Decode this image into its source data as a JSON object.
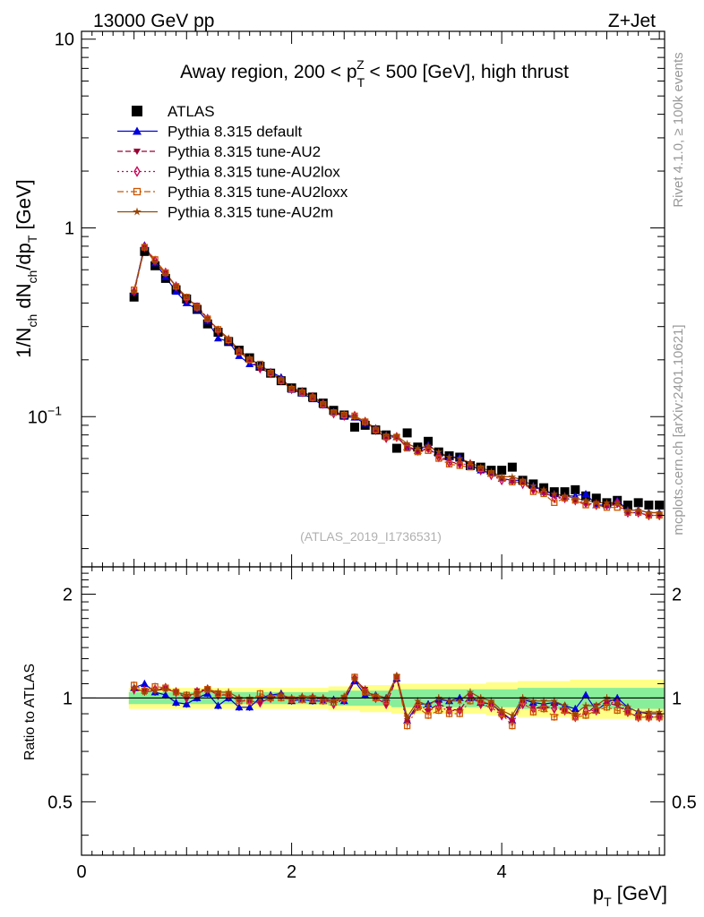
{
  "header": {
    "energy": "13000 GeV pp",
    "process": "Z+Jet"
  },
  "side": {
    "rivet": "Rivet 4.1.0, ≥ 100k events",
    "url": "mcplots.cern.ch [arXiv:2401.10621]"
  },
  "chart_data": [
    {
      "type": "scatter",
      "title": "Away region, 200 < p_T^Z < 500 [GeV], high thrust",
      "title_parts": {
        "main": "Away region, 200 < p",
        "sub": "T",
        "sup": "Z",
        "rest": " < 500 [GeV], high thrust"
      },
      "ylabel": "1/N_ch dN_ch/dp_T [GeV]",
      "ylabel_parts": {
        "a": "1/N",
        "b": "ch",
        "c": " dN",
        "d": "ch",
        "e": "/dp",
        "f": "T",
        "g": " [GeV]"
      },
      "yscale": "log",
      "ylim": [
        0.016,
        11
      ],
      "xlim": [
        0,
        5.55
      ],
      "yticks": [
        {
          "v": 10,
          "label": "10"
        },
        {
          "v": 1,
          "label": "1"
        },
        {
          "v": 0.1,
          "label": "10",
          "exp": "−1"
        }
      ],
      "reference": "(ATLAS_2019_I1736531)",
      "legend_position": "top-left",
      "x": [
        0.5,
        0.6,
        0.7,
        0.8,
        0.9,
        1.0,
        1.1,
        1.2,
        1.3,
        1.4,
        1.5,
        1.6,
        1.7,
        1.8,
        1.9,
        2.0,
        2.1,
        2.2,
        2.3,
        2.4,
        2.5,
        2.6,
        2.7,
        2.8,
        2.9,
        3.0,
        3.1,
        3.2,
        3.3,
        3.4,
        3.5,
        3.6,
        3.7,
        3.8,
        3.9,
        4.0,
        4.1,
        4.2,
        4.3,
        4.4,
        4.5,
        4.6,
        4.7,
        4.8,
        4.9,
        5.0,
        5.1,
        5.2,
        5.3,
        5.4,
        5.5
      ],
      "series": [
        {
          "name": "ATLAS",
          "color": "#000000",
          "marker": "square-filled",
          "values": [
            0.43,
            0.75,
            0.63,
            0.54,
            0.47,
            0.42,
            0.37,
            0.31,
            0.28,
            0.25,
            0.225,
            0.205,
            0.185,
            0.17,
            0.155,
            0.142,
            0.135,
            0.127,
            0.118,
            0.108,
            0.102,
            0.088,
            0.09,
            0.085,
            0.08,
            0.068,
            0.082,
            0.069,
            0.074,
            0.065,
            0.062,
            0.061,
            0.055,
            0.054,
            0.052,
            0.052,
            0.054,
            0.046,
            0.044,
            0.042,
            0.04,
            0.04,
            0.041,
            0.038,
            0.037,
            0.035,
            0.036,
            0.034,
            0.035,
            0.034,
            0.034
          ]
        },
        {
          "name": "Pythia 8.315 default",
          "color": "#0000dd",
          "marker": "triangle-up-filled",
          "line": "solid",
          "values": [
            0.46,
            0.81,
            0.65,
            0.55,
            0.46,
            0.4,
            0.37,
            0.32,
            0.26,
            0.25,
            0.21,
            0.19,
            0.186,
            0.173,
            0.162,
            0.139,
            0.133,
            0.124,
            0.115,
            0.106,
            0.1,
            0.099,
            0.092,
            0.087,
            0.08,
            0.078,
            0.069,
            0.066,
            0.071,
            0.064,
            0.061,
            0.061,
            0.055,
            0.052,
            0.05,
            0.047,
            0.046,
            0.046,
            0.043,
            0.04,
            0.039,
            0.038,
            0.038,
            0.039,
            0.034,
            0.034,
            0.036,
            0.032,
            0.032,
            0.031,
            0.031
          ]
        },
        {
          "name": "Pythia 8.315 tune-AU2",
          "color": "#990033",
          "marker": "triangle-down-filled",
          "line": "dashed",
          "values": [
            0.45,
            0.79,
            0.66,
            0.58,
            0.49,
            0.42,
            0.39,
            0.33,
            0.285,
            0.255,
            0.22,
            0.2,
            0.18,
            0.17,
            0.158,
            0.14,
            0.135,
            0.127,
            0.117,
            0.106,
            0.101,
            0.1,
            0.095,
            0.085,
            0.077,
            0.077,
            0.07,
            0.065,
            0.068,
            0.062,
            0.058,
            0.056,
            0.056,
            0.052,
            0.05,
            0.047,
            0.046,
            0.045,
            0.041,
            0.039,
            0.038,
            0.037,
            0.036,
            0.034,
            0.035,
            0.034,
            0.034,
            0.031,
            0.031,
            0.03,
            0.03
          ]
        },
        {
          "name": "Pythia 8.315 tune-AU2lox",
          "color": "#cc0055",
          "marker": "diamond-open",
          "line": "dotted",
          "values": [
            0.46,
            0.79,
            0.67,
            0.58,
            0.49,
            0.42,
            0.38,
            0.33,
            0.285,
            0.255,
            0.222,
            0.2,
            0.18,
            0.17,
            0.156,
            0.14,
            0.135,
            0.127,
            0.117,
            0.104,
            0.101,
            0.101,
            0.094,
            0.085,
            0.077,
            0.078,
            0.07,
            0.066,
            0.068,
            0.061,
            0.057,
            0.056,
            0.056,
            0.052,
            0.049,
            0.046,
            0.046,
            0.044,
            0.041,
            0.04,
            0.037,
            0.037,
            0.036,
            0.035,
            0.034,
            0.034,
            0.035,
            0.031,
            0.031,
            0.03,
            0.03
          ]
        },
        {
          "name": "Pythia 8.315 tune-AU2loxx",
          "color": "#cc5500",
          "marker": "square-open",
          "line": "dashdot",
          "values": [
            0.47,
            0.79,
            0.68,
            0.58,
            0.49,
            0.43,
            0.38,
            0.33,
            0.29,
            0.255,
            0.22,
            0.2,
            0.19,
            0.17,
            0.155,
            0.14,
            0.134,
            0.126,
            0.116,
            0.105,
            0.102,
            0.101,
            0.094,
            0.085,
            0.078,
            0.078,
            0.068,
            0.065,
            0.066,
            0.06,
            0.056,
            0.055,
            0.054,
            0.053,
            0.05,
            0.047,
            0.045,
            0.045,
            0.04,
            0.039,
            0.035,
            0.037,
            0.036,
            0.034,
            0.034,
            0.033,
            0.033,
            0.031,
            0.031,
            0.03,
            0.03
          ]
        },
        {
          "name": "Pythia 8.315 tune-AU2m",
          "color": "#994400",
          "marker": "star-filled",
          "line": "solid",
          "values": [
            0.46,
            0.78,
            0.66,
            0.57,
            0.49,
            0.43,
            0.38,
            0.33,
            0.29,
            0.26,
            0.225,
            0.205,
            0.185,
            0.172,
            0.158,
            0.142,
            0.136,
            0.128,
            0.118,
            0.106,
            0.103,
            0.1,
            0.094,
            0.087,
            0.08,
            0.079,
            0.072,
            0.068,
            0.07,
            0.065,
            0.061,
            0.06,
            0.057,
            0.054,
            0.051,
            0.048,
            0.048,
            0.046,
            0.043,
            0.041,
            0.039,
            0.038,
            0.037,
            0.036,
            0.035,
            0.035,
            0.035,
            0.032,
            0.032,
            0.031,
            0.031
          ]
        }
      ]
    },
    {
      "type": "line",
      "ylabel": "Ratio to ATLAS",
      "xlabel": "p_T [GeV]",
      "xlabel_parts": {
        "main": "p",
        "sub": "T",
        "rest": " [GeV]"
      },
      "xlim": [
        0,
        5.55
      ],
      "ylim": [
        0.35,
        2.4
      ],
      "yscale": "log",
      "yticks": [
        0.5,
        1,
        2
      ],
      "xticks": [
        0,
        2,
        4
      ],
      "reference_line": 1,
      "band_inner": [
        0.04,
        0.04,
        0.04,
        0.04,
        0.04,
        0.04,
        0.04,
        0.04,
        0.04,
        0.04,
        0.04,
        0.04,
        0.04,
        0.04,
        0.04,
        0.04,
        0.04,
        0.04,
        0.04,
        0.05,
        0.05,
        0.05,
        0.05,
        0.05,
        0.05,
        0.06,
        0.06,
        0.06,
        0.06,
        0.06,
        0.06,
        0.06,
        0.06,
        0.06,
        0.06,
        0.06,
        0.06,
        0.07,
        0.07,
        0.07,
        0.07,
        0.07,
        0.07,
        0.07,
        0.07,
        0.07,
        0.07,
        0.07,
        0.07,
        0.07,
        0.07
      ],
      "band_outer": [
        0.07,
        0.07,
        0.07,
        0.07,
        0.07,
        0.07,
        0.07,
        0.07,
        0.07,
        0.07,
        0.07,
        0.07,
        0.07,
        0.07,
        0.07,
        0.07,
        0.07,
        0.07,
        0.07,
        0.08,
        0.08,
        0.08,
        0.09,
        0.09,
        0.09,
        0.1,
        0.1,
        0.1,
        0.1,
        0.1,
        0.1,
        0.1,
        0.1,
        0.1,
        0.11,
        0.11,
        0.11,
        0.12,
        0.12,
        0.12,
        0.12,
        0.12,
        0.13,
        0.13,
        0.13,
        0.13,
        0.13,
        0.13,
        0.13,
        0.13,
        0.13
      ],
      "series": [
        {
          "name": "Pythia 8.315 default",
          "values": [
            1.07,
            1.1,
            1.04,
            1.02,
            0.97,
            0.96,
            1.0,
            1.03,
            0.95,
            1.0,
            0.94,
            0.94,
            1.0,
            1.02,
            1.03,
            0.98,
            0.99,
            0.98,
            0.98,
            0.99,
            0.98,
            1.12,
            1.02,
            1.02,
            1.0,
            1.14,
            0.86,
            0.96,
            0.96,
            0.99,
            0.98,
            1.0,
            1.0,
            0.97,
            0.96,
            0.91,
            0.86,
            0.99,
            0.97,
            0.96,
            0.97,
            0.95,
            0.93,
            1.02,
            0.92,
            0.97,
            1.0,
            0.94,
            0.91,
            0.9,
            0.9
          ]
        },
        {
          "name": "Pythia 8.315 tune-AU2",
          "values": [
            1.05,
            1.05,
            1.05,
            1.07,
            1.04,
            1.0,
            1.05,
            1.06,
            1.02,
            1.02,
            0.98,
            0.98,
            0.97,
            1.0,
            1.02,
            0.99,
            1.0,
            1.0,
            0.99,
            0.98,
            0.99,
            1.13,
            1.06,
            1.0,
            0.96,
            1.14,
            0.86,
            0.94,
            0.92,
            0.96,
            0.93,
            0.92,
            1.02,
            0.97,
            0.96,
            0.9,
            0.86,
            0.98,
            0.94,
            0.93,
            0.95,
            0.92,
            0.89,
            0.9,
            0.95,
            0.97,
            0.95,
            0.91,
            0.88,
            0.88,
            0.88
          ]
        },
        {
          "name": "Pythia 8.315 tune-AU2lox",
          "values": [
            1.06,
            1.05,
            1.06,
            1.07,
            1.04,
            1.0,
            1.04,
            1.06,
            1.02,
            1.02,
            0.99,
            0.98,
            0.97,
            1.0,
            1.01,
            0.99,
            1.0,
            1.0,
            0.99,
            0.96,
            0.99,
            1.14,
            1.05,
            1.0,
            0.96,
            1.15,
            0.86,
            0.96,
            0.92,
            0.94,
            0.92,
            0.92,
            1.02,
            0.96,
            0.94,
            0.89,
            0.86,
            0.96,
            0.93,
            0.95,
            0.93,
            0.92,
            0.88,
            0.92,
            0.92,
            0.97,
            0.97,
            0.91,
            0.88,
            0.88,
            0.88
          ]
        },
        {
          "name": "Pythia 8.315 tune-AU2loxx",
          "values": [
            1.09,
            1.05,
            1.08,
            1.07,
            1.04,
            1.02,
            1.03,
            1.06,
            1.03,
            1.02,
            0.98,
            0.98,
            1.03,
            1.0,
            1.0,
            0.99,
            0.99,
            0.99,
            0.98,
            0.97,
            1.0,
            1.15,
            1.04,
            1.0,
            0.98,
            1.15,
            0.83,
            0.94,
            0.89,
            0.92,
            0.9,
            0.9,
            0.98,
            0.98,
            0.96,
            0.9,
            0.83,
            0.98,
            0.91,
            0.93,
            0.88,
            0.92,
            0.88,
            0.89,
            0.92,
            0.94,
            0.92,
            0.91,
            0.88,
            0.88,
            0.88
          ]
        },
        {
          "name": "Pythia 8.315 tune-AU2m",
          "values": [
            1.07,
            1.04,
            1.05,
            1.06,
            1.04,
            1.02,
            1.03,
            1.06,
            1.04,
            1.04,
            1.0,
            1.0,
            1.0,
            1.01,
            1.02,
            1.0,
            1.01,
            1.01,
            1.0,
            0.98,
            1.01,
            1.14,
            1.04,
            1.02,
            1.0,
            1.16,
            0.88,
            0.98,
            0.95,
            1.0,
            0.98,
            0.98,
            1.04,
            1.0,
            0.98,
            0.92,
            0.89,
            1.0,
            0.98,
            0.98,
            0.98,
            0.95,
            0.9,
            0.95,
            0.95,
            1.0,
            0.97,
            0.94,
            0.91,
            0.91,
            0.91
          ]
        }
      ]
    }
  ]
}
